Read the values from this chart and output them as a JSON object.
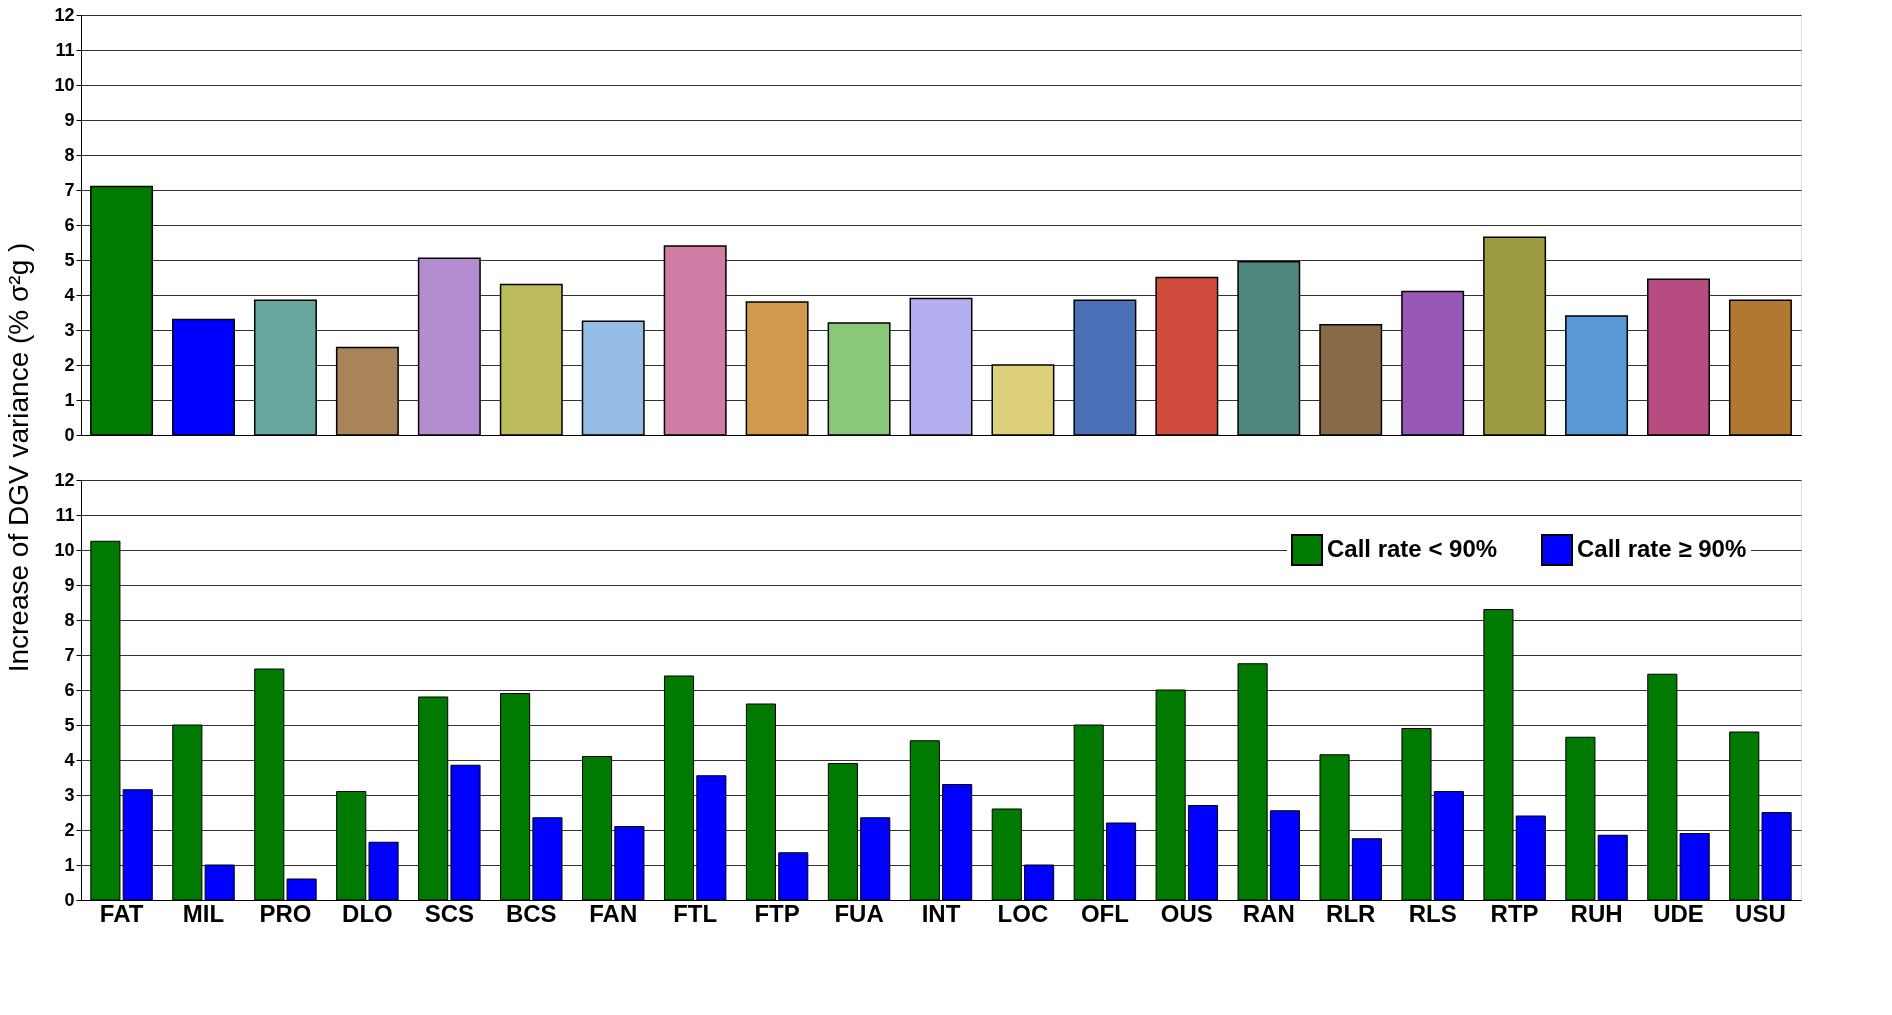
{
  "chart_data": [
    {
      "type": "bar",
      "ylabel": "Increase of DGV variance (% σ²g )",
      "categories": [
        null,
        null,
        null,
        null,
        null,
        null,
        null,
        null,
        null,
        null,
        null,
        null,
        null,
        null,
        null,
        null,
        null,
        null,
        null,
        null,
        null
      ],
      "values": [
        7.1,
        3.3,
        3.85,
        2.5,
        5.05,
        4.3,
        3.25,
        5.4,
        3.8,
        3.2,
        3.9,
        2.0,
        3.85,
        4.5,
        4.95,
        3.15,
        4.1,
        5.65,
        3.4,
        4.45,
        3.85
      ],
      "colors": [
        "#007a00",
        "#0000ff",
        "#68a8a0",
        "#a88458",
        "#b48cd0",
        "#bcbc5c",
        "#94bce4",
        "#d07ca4",
        "#d09a4c",
        "#88c878",
        "#b4b0f0",
        "#dcd07c",
        "#4c70b8",
        "#d04c3c",
        "#508880",
        "#886a48",
        "#9858b8",
        "#9c9c40",
        "#5898d4",
        "#b84c80",
        "#b07830"
      ],
      "ylim": [
        0,
        12
      ],
      "yticks": [
        0,
        1,
        2,
        3,
        4,
        5,
        6,
        7,
        8,
        9,
        10,
        11,
        12
      ],
      "grid": "y",
      "tick_labels": "y"
    },
    {
      "type": "bar",
      "categories": [
        "FAT",
        "MIL",
        "PRO",
        "DLO",
        "SCS",
        "BCS",
        "FAN",
        "FTL",
        "FTP",
        "FUA",
        "INT",
        "LOC",
        "OFL",
        "OUS",
        "RAN",
        "RLR",
        "RLS",
        "RTP",
        "RUH",
        "UDE",
        "USU"
      ],
      "series": [
        {
          "name": "Call rate < 90%",
          "color": "#007a00",
          "values": [
            10.25,
            5.0,
            6.6,
            3.1,
            5.8,
            5.9,
            4.1,
            6.4,
            5.6,
            3.9,
            4.55,
            2.6,
            5.0,
            6.0,
            6.75,
            4.15,
            4.9,
            8.3,
            4.65,
            6.45,
            4.8
          ]
        },
        {
          "name": "Call rate ≥ 90%",
          "color": "#0000ff",
          "values": [
            3.15,
            1.0,
            0.6,
            1.65,
            3.85,
            2.35,
            2.1,
            3.55,
            1.35,
            2.35,
            3.3,
            1.0,
            2.2,
            2.7,
            2.55,
            1.75,
            3.1,
            2.4,
            1.85,
            1.9,
            2.5
          ]
        }
      ],
      "ylim": [
        0,
        12
      ],
      "yticks": [
        0,
        1,
        2,
        3,
        4,
        5,
        6,
        7,
        8,
        9,
        10,
        11,
        12
      ],
      "grid": "y",
      "legend": "top right"
    }
  ]
}
